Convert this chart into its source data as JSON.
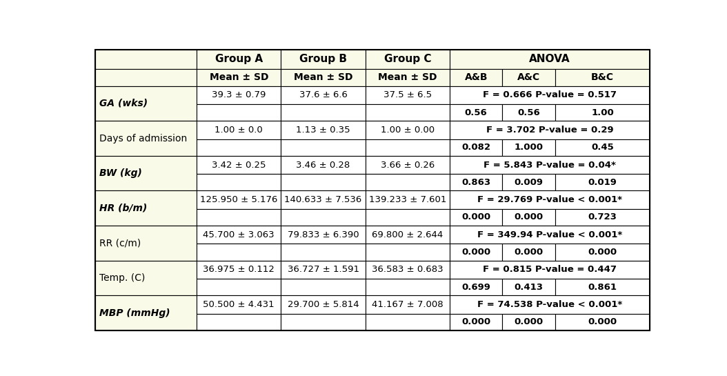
{
  "header_bg": "#FAFAE8",
  "body_bg": "#FFFFFF",
  "border_color": "#000000",
  "rows": [
    {
      "label": "GA (wks)",
      "label_bold": true,
      "label_italic": true,
      "groupA": "39.3 ± 0.79",
      "groupB": "37.6 ± 6.6",
      "groupC": "37.5 ± 6.5",
      "anova_span": "F = 0.666 P-value = 0.517",
      "ab": "0.56",
      "ac": "0.56",
      "bc": "1.00"
    },
    {
      "label": "Days of admission",
      "label_bold": false,
      "label_italic": false,
      "groupA": "1.00 ± 0.0",
      "groupB": "1.13 ± 0.35",
      "groupC": "1.00 ± 0.00",
      "anova_span": "F = 3.702 P-value = 0.29",
      "ab": "0.082",
      "ac": "1.000",
      "bc": "0.45"
    },
    {
      "label": "BW (kg)",
      "label_bold": true,
      "label_italic": true,
      "groupA": "3.42 ± 0.25",
      "groupB": "3.46 ± 0.28",
      "groupC": "3.66 ± 0.26",
      "anova_span": "F = 5.843 P-value = 0.04*",
      "ab": "0.863",
      "ac": "0.009",
      "bc": "0.019"
    },
    {
      "label": "HR (b/m)",
      "label_bold": true,
      "label_italic": true,
      "groupA": "125.950 ± 5.176",
      "groupB": "140.633 ± 7.536",
      "groupC": "139.233 ± 7.601",
      "anova_span": "F = 29.769 P-value < 0.001*",
      "ab": "0.000",
      "ac": "0.000",
      "bc": "0.723"
    },
    {
      "label": "RR (c/m)",
      "label_bold": false,
      "label_italic": false,
      "groupA": "45.700 ± 3.063",
      "groupB": "79.833 ± 6.390",
      "groupC": "69.800 ± 2.644",
      "anova_span": "F = 349.94 P-value < 0.001*",
      "ab": "0.000",
      "ac": "0.000",
      "bc": "0.000"
    },
    {
      "label": "Temp. (C)",
      "label_bold": false,
      "label_italic": false,
      "groupA": "36.975 ± 0.112",
      "groupB": "36.727 ± 1.591",
      "groupC": "36.583 ± 0.683",
      "anova_span": "F = 0.815 P-value = 0.447",
      "ab": "0.699",
      "ac": "0.413",
      "bc": "0.861"
    },
    {
      "label": "MBP (mmHg)",
      "label_bold": true,
      "label_italic": true,
      "groupA": "50.500 ± 4.431",
      "groupB": "29.700 ± 5.814",
      "groupC": "41.167 ± 7.008",
      "anova_span": "F = 74.538 P-value < 0.001*",
      "ab": "0.000",
      "ac": "0.000",
      "bc": "0.000"
    }
  ]
}
